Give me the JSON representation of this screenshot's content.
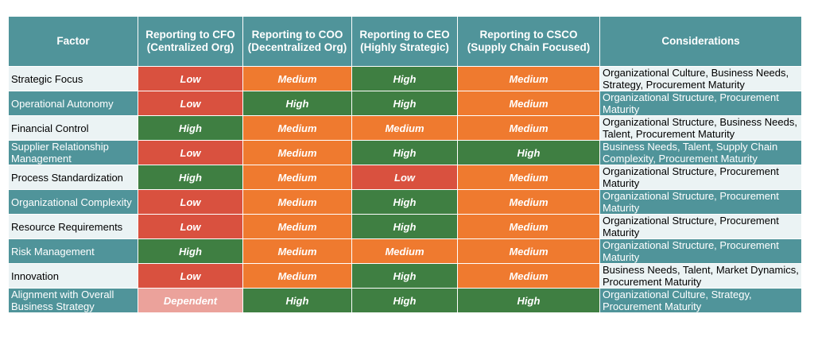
{
  "table": {
    "headers": [
      "Factor",
      "Reporting to CFO (Centralized Org)",
      "Reporting to COO (Decentralized Org)",
      "Reporting to CEO (Highly Strategic)",
      "Reporting to CSCO (Supply Chain Focused)",
      "Considerations"
    ],
    "rows": [
      {
        "factor": "Strategic Focus",
        "cfo": "Low",
        "coo": "Medium",
        "ceo": "High",
        "csco": "Medium",
        "considerations": "Organizational Culture, Business Needs, Strategy, Procurement Maturity"
      },
      {
        "factor": "Operational Autonomy",
        "cfo": "Low",
        "coo": "High",
        "ceo": "High",
        "csco": "Medium",
        "considerations": "Organizational Structure, Procurement Maturity"
      },
      {
        "factor": "Financial Control",
        "cfo": "High",
        "coo": "Medium",
        "ceo": "Medium",
        "csco": "Medium",
        "considerations": "Organizational Structure, Business Needs, Talent, Procurement Maturity"
      },
      {
        "factor": "Supplier Relationship Management",
        "cfo": "Low",
        "coo": "Medium",
        "ceo": "High",
        "csco": "High",
        "considerations": "Business Needs, Talent, Supply Chain Complexity, Procurement Maturity"
      },
      {
        "factor": "Process Standardization",
        "cfo": "High",
        "coo": "Medium",
        "ceo": "Low",
        "csco": "Medium",
        "considerations": "Organizational Structure, Procurement Maturity"
      },
      {
        "factor": "Organizational Complexity",
        "cfo": "Low",
        "coo": "Medium",
        "ceo": "High",
        "csco": "Medium",
        "considerations": "Organizational Structure, Procurement Maturity"
      },
      {
        "factor": "Resource Requirements",
        "cfo": "Low",
        "coo": "Medium",
        "ceo": "High",
        "csco": "Medium",
        "considerations": "Organizational Structure, Procurement Maturity"
      },
      {
        "factor": "Risk Management",
        "cfo": "High",
        "coo": "Medium",
        "ceo": "Medium",
        "csco": "Medium",
        "considerations": "Organizational Structure, Procurement Maturity"
      },
      {
        "factor": "Innovation",
        "cfo": "Low",
        "coo": "Medium",
        "ceo": "High",
        "csco": "Medium",
        "considerations": "Business Needs, Talent, Market Dynamics, Procurement Maturity"
      },
      {
        "factor": "Alignment with Overall Business Strategy",
        "cfo": "Dependent",
        "coo": "High",
        "ceo": "High",
        "csco": "High",
        "considerations": "Organizational Culture, Strategy, Procurement Maturity"
      }
    ]
  },
  "colors": {
    "header_teal": "#50949a",
    "row_light": "#ebf3f4",
    "low": "#d9513f",
    "medium": "#ef7a2f",
    "high": "#3f7f42",
    "dependent": "#eba29b"
  }
}
